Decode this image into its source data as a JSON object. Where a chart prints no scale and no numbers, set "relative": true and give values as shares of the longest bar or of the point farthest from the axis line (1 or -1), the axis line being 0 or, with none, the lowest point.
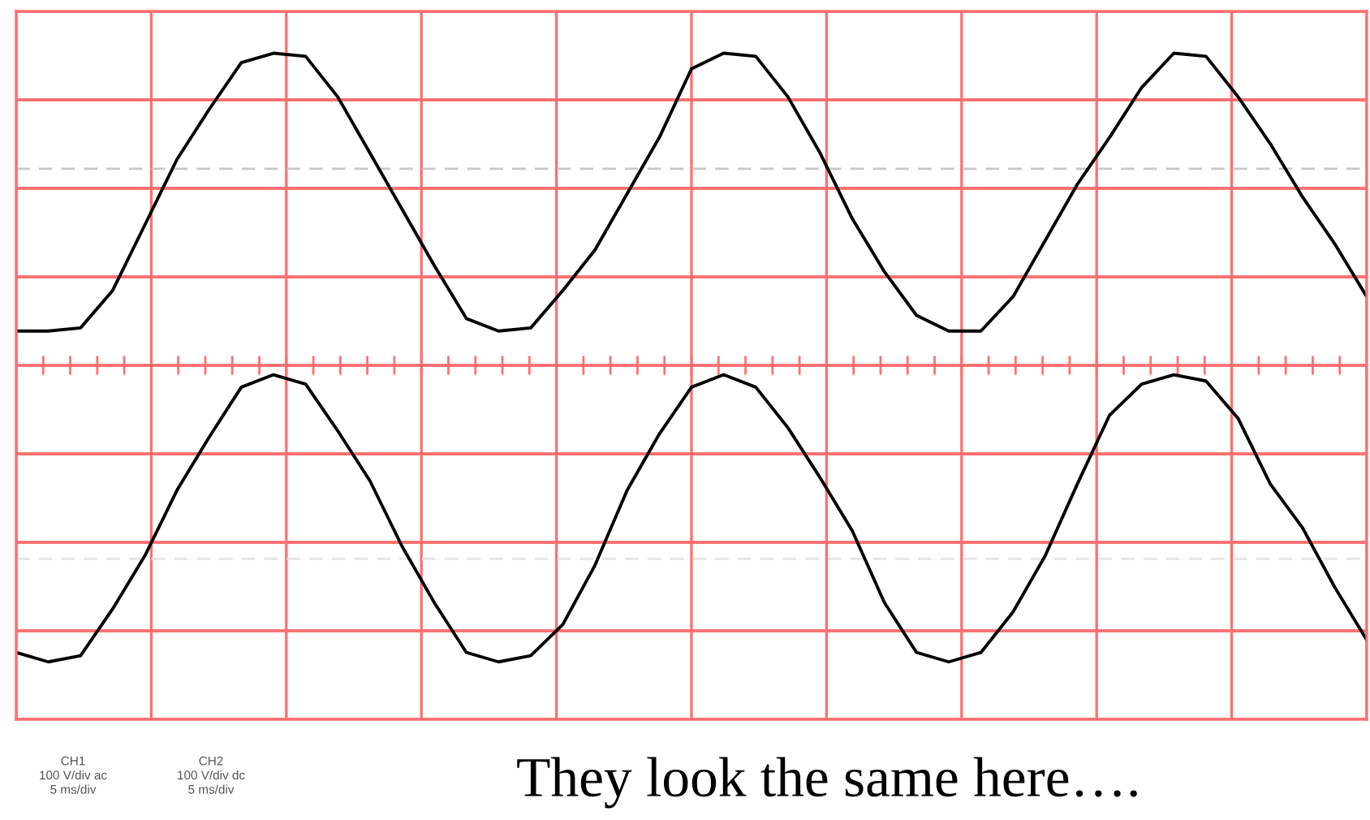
{
  "chart_data": {
    "type": "line",
    "relative": true,
    "grid": true,
    "legend": false,
    "marker": "none",
    "line_style": "solid",
    "categories": [
      null,
      null,
      null,
      null,
      null,
      null,
      null,
      null,
      null,
      null,
      null,
      null,
      null,
      null,
      null,
      null,
      null,
      null,
      null,
      null,
      null,
      null,
      null,
      null,
      null,
      null,
      null,
      null,
      null,
      null,
      null,
      null,
      null,
      null,
      null,
      null,
      null,
      null,
      null,
      null,
      null,
      null,
      null
    ],
    "series": [
      {
        "color": "#000000",
        "values": [
          0.11,
          0.11,
          0.12,
          0.24,
          0.45,
          0.66,
          0.82,
          0.97,
          1,
          0.99,
          0.86,
          0.68,
          0.5,
          0.32,
          0.15,
          0.11,
          0.12,
          0.24,
          0.37,
          0.55,
          0.73,
          0.95,
          1,
          0.99,
          0.86,
          0.68,
          0.47,
          0.3,
          0.16,
          0.11,
          0.11,
          0.22,
          0.4,
          0.58,
          0.73,
          0.89,
          1,
          0.99,
          0.86,
          0.71,
          0.54,
          0.39,
          0.22
        ]
      },
      {
        "color": "#000000",
        "values": [
          -0.92,
          -0.95,
          -0.93,
          -0.78,
          -0.61,
          -0.4,
          -0.23,
          -0.07,
          -0.03,
          -0.06,
          -0.21,
          -0.37,
          -0.58,
          -0.76,
          -0.92,
          -0.95,
          -0.93,
          -0.83,
          -0.64,
          -0.4,
          -0.22,
          -0.07,
          -0.03,
          -0.07,
          -0.2,
          -0.36,
          -0.53,
          -0.76,
          -0.92,
          -0.95,
          -0.92,
          -0.79,
          -0.61,
          -0.38,
          -0.16,
          -0.06,
          -0.03,
          -0.05,
          -0.17,
          -0.38,
          -0.52,
          -0.71,
          -0.88
        ]
      }
    ],
    "ref_lines": [
      {
        "axis": "y",
        "value": 0.63,
        "color": "#c8c8c8",
        "line_style": "dashed"
      },
      {
        "axis": "y",
        "value": -0.62,
        "color": "#e4e4e4",
        "line_style": "dashed"
      }
    ],
    "annotations": [
      "CH1\n100 V/div ac\n5 ms/div",
      "CH2\n100 V/div dc\n5 ms/div",
      "They look the same here…."
    ]
  }
}
